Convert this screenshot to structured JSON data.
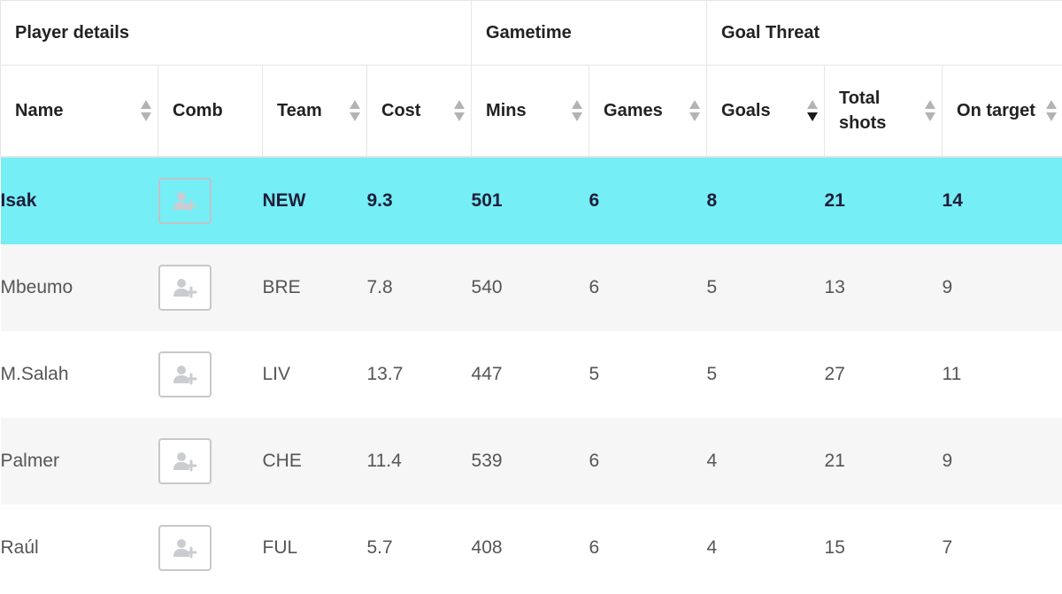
{
  "groups": [
    {
      "label": "Player details"
    },
    {
      "label": "Gametime"
    },
    {
      "label": "Goal Threat"
    }
  ],
  "columns": [
    {
      "key": "name",
      "label": "Name",
      "sortable": true,
      "sort": "none"
    },
    {
      "key": "comb",
      "label": "Comb",
      "sortable": false,
      "sort": "none"
    },
    {
      "key": "team",
      "label": "Team",
      "sortable": true,
      "sort": "none"
    },
    {
      "key": "cost",
      "label": "Cost",
      "sortable": true,
      "sort": "none"
    },
    {
      "key": "mins",
      "label": "Mins",
      "sortable": true,
      "sort": "none"
    },
    {
      "key": "games",
      "label": "Games",
      "sortable": true,
      "sort": "none"
    },
    {
      "key": "goals",
      "label": "Goals",
      "sortable": true,
      "sort": "desc"
    },
    {
      "key": "total_shots",
      "label": "Total shots",
      "sortable": true,
      "sort": "none"
    },
    {
      "key": "on_target",
      "label": "On target",
      "sortable": true,
      "sort": "none"
    }
  ],
  "rows": [
    {
      "name": "Isak",
      "team": "NEW",
      "cost": "9.3",
      "mins": "501",
      "games": "6",
      "goals": "8",
      "total_shots": "21",
      "on_target": "14",
      "highlighted": true
    },
    {
      "name": "Mbeumo",
      "team": "BRE",
      "cost": "7.8",
      "mins": "540",
      "games": "6",
      "goals": "5",
      "total_shots": "13",
      "on_target": "9",
      "highlighted": false
    },
    {
      "name": "M.Salah",
      "team": "LIV",
      "cost": "13.7",
      "mins": "447",
      "games": "5",
      "goals": "5",
      "total_shots": "27",
      "on_target": "11",
      "highlighted": false
    },
    {
      "name": "Palmer",
      "team": "CHE",
      "cost": "11.4",
      "mins": "539",
      "games": "6",
      "goals": "4",
      "total_shots": "21",
      "on_target": "9",
      "highlighted": false
    },
    {
      "name": "Raúl",
      "team": "FUL",
      "cost": "5.7",
      "mins": "408",
      "games": "6",
      "goals": "4",
      "total_shots": "15",
      "on_target": "7",
      "highlighted": false
    }
  ],
  "icons": {
    "comb_button": "add-user-icon",
    "sort": "sort-arrows-icon"
  },
  "colors": {
    "highlight_row": "#76eef6",
    "alt_row": "#f6f6f6",
    "sort_active": "#1a1a1a",
    "sort_inactive": "#b3b3b3"
  }
}
